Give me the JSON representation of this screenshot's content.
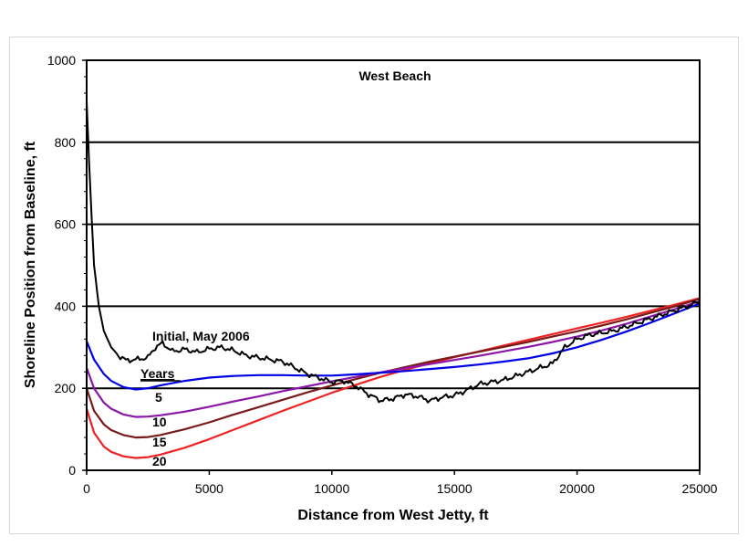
{
  "chart_data": {
    "type": "line",
    "title": "West Beach",
    "xlabel": "Distance from West Jetty, ft",
    "ylabel": "Shoreline Position from Baseline, ft",
    "xlim": [
      0,
      25000
    ],
    "ylim": [
      0,
      1000
    ],
    "x_ticks": [
      0,
      5000,
      10000,
      15000,
      20000,
      25000
    ],
    "y_ticks": [
      0,
      200,
      400,
      600,
      800,
      1000
    ],
    "grid": "horizontal gridlines at 200, 400, 600, 800",
    "legend": "inline labels",
    "annotations": {
      "initial_label": "Initial, May 2006",
      "years_header": "Years",
      "year_labels": [
        "5",
        "10",
        "15",
        "20"
      ]
    },
    "series": [
      {
        "name": "Initial, May 2006",
        "color": "#000000",
        "x": [
          0,
          100,
          200,
          300,
          500,
          700,
          1000,
          1300,
          1600,
          2000,
          2500,
          2800,
          3100,
          3500,
          4000,
          4500,
          5000,
          5500,
          6000,
          6500,
          7000,
          7500,
          8000,
          8500,
          9000,
          9500,
          10000,
          10500,
          11000,
          11500,
          12000,
          12500,
          13000,
          13500,
          14000,
          14500,
          15000,
          15500,
          16000,
          16500,
          17000,
          17500,
          18000,
          18500,
          19000,
          19500,
          20000,
          20500,
          21000,
          21500,
          22000,
          22500,
          23000,
          23500,
          24000,
          24500,
          25000
        ],
        "y": [
          900,
          750,
          620,
          500,
          400,
          340,
          300,
          280,
          268,
          270,
          275,
          300,
          310,
          290,
          295,
          288,
          296,
          300,
          292,
          280,
          275,
          270,
          265,
          250,
          235,
          225,
          215,
          218,
          205,
          185,
          170,
          175,
          185,
          180,
          170,
          178,
          183,
          195,
          210,
          215,
          220,
          230,
          240,
          250,
          260,
          300,
          320,
          330,
          335,
          340,
          350,
          360,
          370,
          380,
          390,
          400,
          412
        ]
      },
      {
        "name": "5",
        "color": "#0000e6",
        "x": [
          0,
          300,
          700,
          1000,
          1500,
          2000,
          2500,
          3000,
          4000,
          5000,
          6000,
          7000,
          8000,
          9000,
          10000,
          11000,
          12000,
          13000,
          14000,
          15000,
          16000,
          17000,
          18000,
          19000,
          20000,
          21000,
          22000,
          23000,
          24000,
          25000
        ],
        "y": [
          315,
          270,
          235,
          218,
          203,
          197,
          200,
          207,
          218,
          226,
          230,
          232,
          232,
          231,
          231,
          234,
          238,
          242,
          247,
          252,
          258,
          265,
          273,
          285,
          300,
          318,
          338,
          360,
          383,
          407
        ]
      },
      {
        "name": "10",
        "color": "#8b16a8",
        "x": [
          0,
          300,
          700,
          1000,
          1500,
          2000,
          2500,
          3000,
          4000,
          5000,
          6000,
          7000,
          8000,
          9000,
          10000,
          11000,
          12000,
          13000,
          14000,
          15000,
          16000,
          17000,
          18000,
          19000,
          20000,
          21000,
          22000,
          23000,
          24000,
          25000
        ],
        "y": [
          250,
          200,
          165,
          150,
          136,
          130,
          131,
          134,
          143,
          155,
          168,
          180,
          193,
          205,
          217,
          228,
          239,
          249,
          259,
          269,
          279,
          290,
          301,
          313,
          326,
          341,
          357,
          375,
          393,
          412
        ]
      },
      {
        "name": "15",
        "color": "#7a1a1a",
        "x": [
          0,
          300,
          700,
          1000,
          1500,
          2000,
          2500,
          3000,
          4000,
          5000,
          6000,
          7000,
          8000,
          9000,
          10000,
          11000,
          12000,
          13000,
          14000,
          15000,
          16000,
          17000,
          18000,
          19000,
          20000,
          21000,
          22000,
          23000,
          24000,
          25000
        ],
        "y": [
          200,
          145,
          112,
          98,
          86,
          80,
          81,
          86,
          100,
          117,
          136,
          154,
          172,
          190,
          207,
          223,
          238,
          252,
          265,
          277,
          289,
          301,
          313,
          326,
          339,
          353,
          368,
          384,
          400,
          418
        ]
      },
      {
        "name": "20",
        "color": "#ee2222",
        "x": [
          0,
          300,
          700,
          1000,
          1500,
          2000,
          2500,
          3000,
          4000,
          5000,
          6000,
          7000,
          8000,
          9000,
          10000,
          11000,
          12000,
          13000,
          14000,
          15000,
          16000,
          17000,
          18000,
          19000,
          20000,
          21000,
          22000,
          23000,
          24000,
          25000
        ],
        "y": [
          150,
          92,
          58,
          45,
          34,
          30,
          32,
          38,
          55,
          76,
          99,
          122,
          145,
          167,
          189,
          209,
          228,
          245,
          261,
          276,
          290,
          304,
          318,
          332,
          346,
          360,
          374,
          389,
          404,
          420
        ]
      }
    ]
  }
}
